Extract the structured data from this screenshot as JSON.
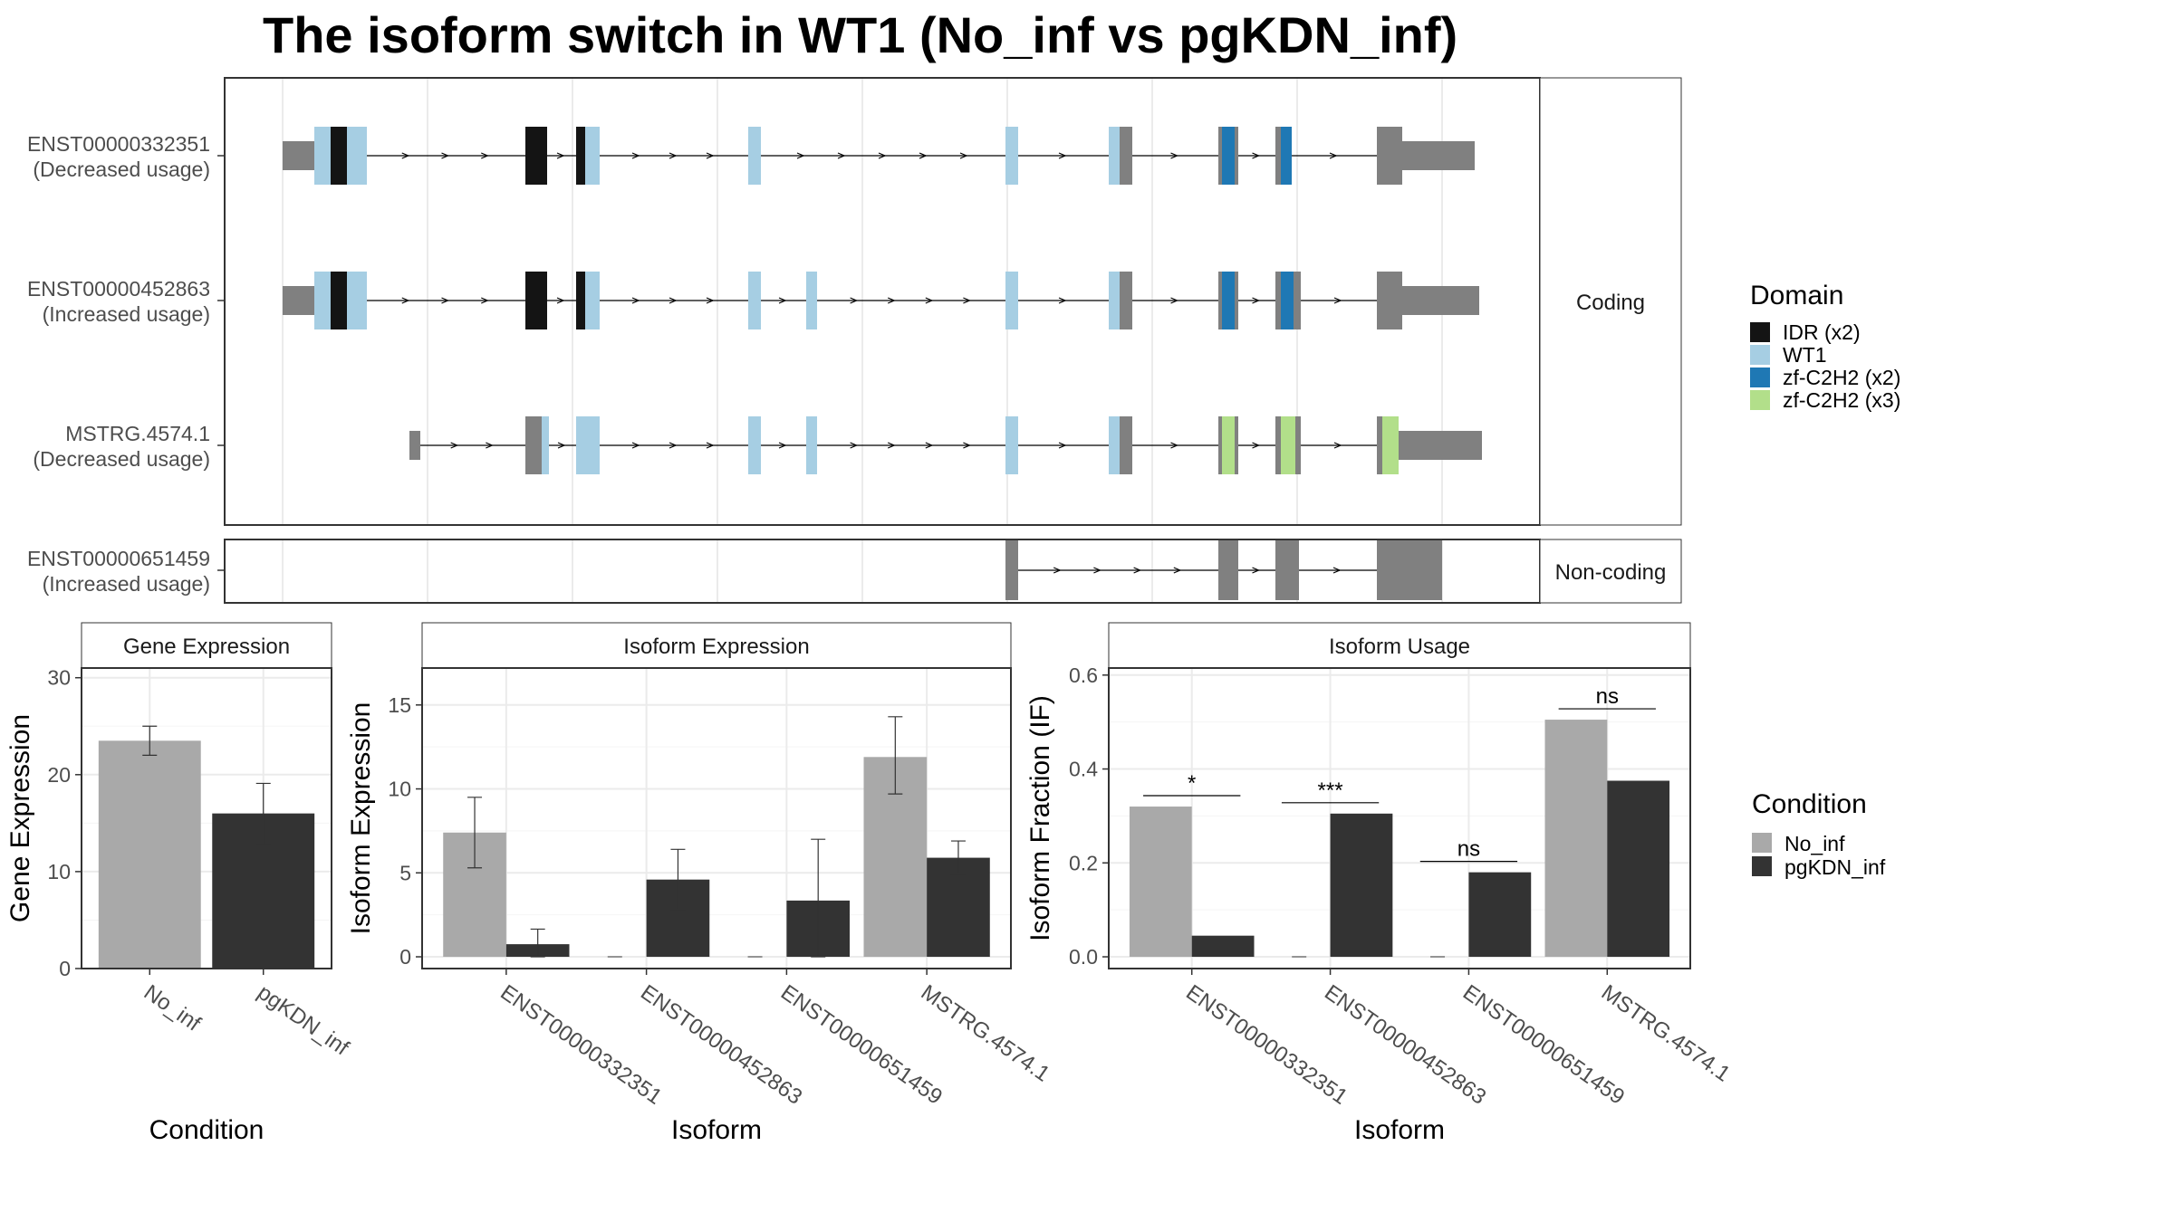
{
  "title": "The isoform switch in WT1 (No_inf vs pgKDN_inf)",
  "colors": {
    "no_inf": "#a9a9a9",
    "pgkdn_inf": "#333333",
    "utr": "#808080",
    "idr": "#141414",
    "wt1": "#a6cee3",
    "zf_x2": "#1f78b4",
    "zf_x3": "#b2df8a"
  },
  "structure": {
    "facets": {
      "coding": "Coding",
      "noncoding": "Non-coding"
    },
    "transcripts": [
      {
        "id": "ENST00000332351",
        "usage": "(Decreased usage)",
        "facet": "coding"
      },
      {
        "id": "ENST00000452863",
        "usage": "(Increased usage)",
        "facet": "coding"
      },
      {
        "id": "MSTRG.4574.1",
        "usage": "(Decreased usage)",
        "facet": "coding"
      },
      {
        "id": "ENST00000651459",
        "usage": "(Increased usage)",
        "facet": "noncoding"
      }
    ],
    "domain_legend": {
      "title": "Domain",
      "items": [
        {
          "label": "IDR (x2)",
          "color_key": "idr"
        },
        {
          "label": "WT1",
          "color_key": "wt1"
        },
        {
          "label": "zf-C2H2 (x2)",
          "color_key": "zf_x2"
        },
        {
          "label": "zf-C2H2 (x3)",
          "color_key": "zf_x3"
        }
      ]
    }
  },
  "condition_legend": {
    "title": "Condition",
    "items": [
      {
        "label": "No_inf",
        "color_key": "no_inf"
      },
      {
        "label": "pgKDN_inf",
        "color_key": "pgkdn_inf"
      }
    ]
  },
  "chart_data": [
    {
      "type": "bar",
      "panel": "Gene Expression",
      "xlabel": "Condition",
      "ylabel": "Gene Expression",
      "ylim": [
        0,
        31
      ],
      "yticks": [
        0,
        10,
        20,
        30
      ],
      "categories": [
        "No_inf",
        "pgKDN_inf"
      ],
      "values": [
        23.5,
        16.0
      ],
      "error": [
        [
          22.0,
          25.0
        ],
        [
          12.8,
          19.1
        ]
      ]
    },
    {
      "type": "bar",
      "panel": "Isoform Expression",
      "xlabel": "Isoform",
      "ylabel": "Isoform Expression",
      "ylim": [
        -0.7,
        17.2
      ],
      "yticks": [
        0,
        5,
        10,
        15
      ],
      "categories": [
        "ENST00000332351",
        "ENST00000452863",
        "ENST00000651459",
        "MSTRG.4574.1"
      ],
      "series": [
        {
          "name": "No_inf",
          "values": [
            7.4,
            0.0,
            0.0,
            11.9
          ],
          "error": [
            [
              5.3,
              9.5
            ],
            null,
            null,
            [
              9.7,
              14.3
            ]
          ]
        },
        {
          "name": "pgKDN_inf",
          "values": [
            0.75,
            4.6,
            3.35,
            5.9
          ],
          "error": [
            [
              0.0,
              1.65
            ],
            [
              2.8,
              6.4
            ],
            [
              0.0,
              7.0
            ],
            [
              4.9,
              6.9
            ]
          ]
        }
      ]
    },
    {
      "type": "bar",
      "panel": "Isoform Usage",
      "xlabel": "Isoform",
      "ylabel": "Isoform Fraction (IF)",
      "ylim": [
        -0.025,
        0.615
      ],
      "yticks": [
        0.0,
        0.2,
        0.4,
        0.6
      ],
      "categories": [
        "ENST00000332351",
        "ENST00000452863",
        "ENST00000651459",
        "MSTRG.4574.1"
      ],
      "series": [
        {
          "name": "No_inf",
          "values": [
            0.32,
            0.0,
            0.0,
            0.505
          ]
        },
        {
          "name": "pgKDN_inf",
          "values": [
            0.045,
            0.305,
            0.18,
            0.375
          ]
        }
      ],
      "significance": [
        "*",
        "***",
        "ns",
        "ns"
      ]
    }
  ]
}
